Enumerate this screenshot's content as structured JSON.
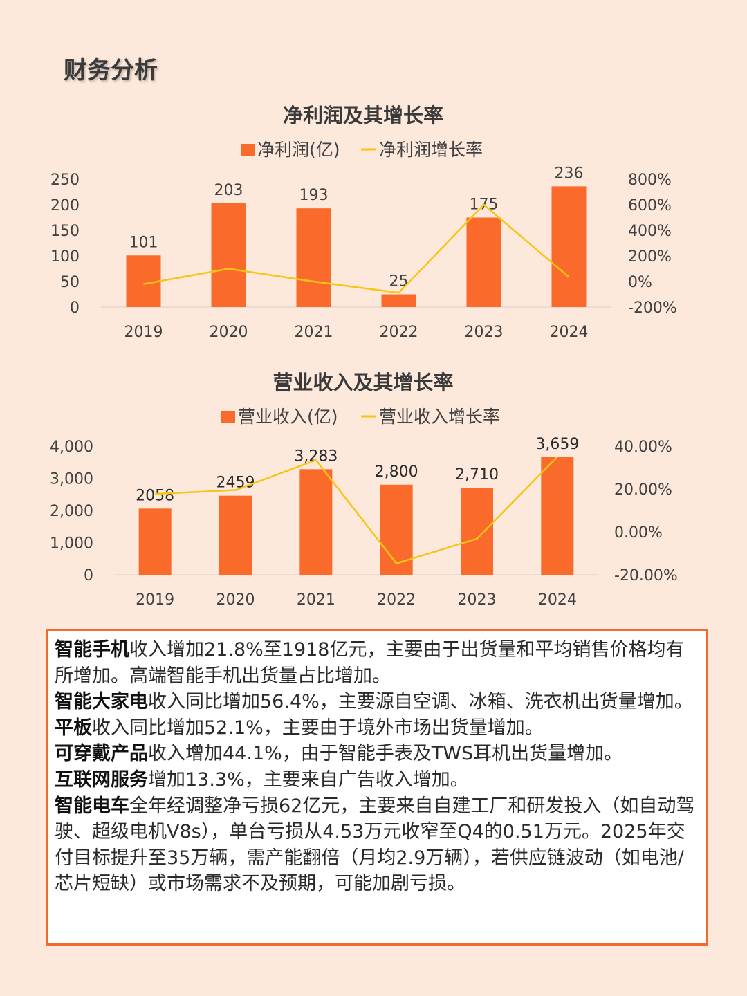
{
  "page_title": "财务分析",
  "colors": {
    "bar": "#fa6a2a",
    "line": "#f5c518",
    "background": "#fde8dc",
    "box_border": "#f26b2a"
  },
  "chart_data": [
    {
      "type": "bar",
      "title": "净利润及其增长率",
      "categories": [
        "2019",
        "2020",
        "2021",
        "2022",
        "2023",
        "2024"
      ],
      "series": [
        {
          "name": "净利润(亿)",
          "type": "bar",
          "axis": "left",
          "values": [
            101,
            203,
            193,
            25,
            175,
            236
          ],
          "labels": [
            "101",
            "203",
            "193",
            "25",
            "175",
            "236"
          ]
        },
        {
          "name": "净利润增长率",
          "type": "line",
          "axis": "right",
          "values": [
            -0.2,
            1.0,
            0.0,
            -0.88,
            6.0,
            0.35
          ]
        }
      ],
      "ylim": [
        0,
        250
      ],
      "yticks": [
        0,
        50,
        100,
        150,
        200,
        250
      ],
      "ytick_labels": [
        "0",
        "50",
        "100",
        "150",
        "200",
        "250"
      ],
      "y2lim": [
        -2,
        8
      ],
      "y2ticks": [
        -2,
        0,
        2,
        4,
        6,
        8
      ],
      "y2tick_labels": [
        "-200%",
        "0%",
        "200%",
        "400%",
        "600%",
        "800%"
      ],
      "legend": "top",
      "grid": false
    },
    {
      "type": "bar",
      "title": "营业收入及其增长率",
      "categories": [
        "2019",
        "2020",
        "2021",
        "2022",
        "2023",
        "2024"
      ],
      "series": [
        {
          "name": "营业收入(亿)",
          "type": "bar",
          "axis": "left",
          "values": [
            2058,
            2459,
            3283,
            2800,
            2710,
            3659
          ],
          "labels": [
            "2058",
            "2459",
            "3,283",
            "2,800",
            "2,710",
            "3,659"
          ]
        },
        {
          "name": "营业收入增长率",
          "type": "line",
          "axis": "right",
          "values": [
            0.177,
            0.195,
            0.335,
            -0.147,
            -0.032,
            0.35
          ]
        }
      ],
      "ylim": [
        0,
        4000
      ],
      "yticks": [
        0,
        1000,
        2000,
        3000,
        4000
      ],
      "ytick_labels": [
        "0",
        "1,000",
        "2,000",
        "3,000",
        "4,000"
      ],
      "y2lim": [
        -0.2,
        0.4
      ],
      "y2ticks": [
        -0.2,
        0,
        0.2,
        0.4
      ],
      "y2tick_labels": [
        "-20.00%",
        "0.00%",
        "20.00%",
        "40.00%"
      ],
      "legend": "top",
      "grid": false
    }
  ],
  "summary": [
    {
      "bold": "智能手机",
      "text": "收入增加21.8%至1918亿元，主要由于出货量和平均销售价格均有所增加。高端智能手机出货量占比增加。"
    },
    {
      "bold": "智能大家电",
      "text": "收入同比增加56.4%，主要源自空调、冰箱、洗衣机出货量增加。"
    },
    {
      "bold": "平板",
      "text": "收入同比增加52.1%，主要由于境外市场出货量增加。"
    },
    {
      "bold": "可穿戴产品",
      "text": "收入增加44.1%，由于智能手表及TWS耳机出货量增加。"
    },
    {
      "bold": "互联网服务",
      "text": "增加13.3%，主要来自广告收入增加。"
    },
    {
      "bold": "智能电车",
      "text": "全年经调整净亏损62亿元，主要来自自建工厂和研发投入（如自动驾驶、超级电机V8s），单台亏损从4.53万元收窄至Q4的0.51万元。2025年交付目标提升至35万辆，需产能翻倍（月均2.9万辆），若供应链波动（如电池/芯片短缺）或市场需求不及预期，可能加剧亏损。"
    }
  ]
}
